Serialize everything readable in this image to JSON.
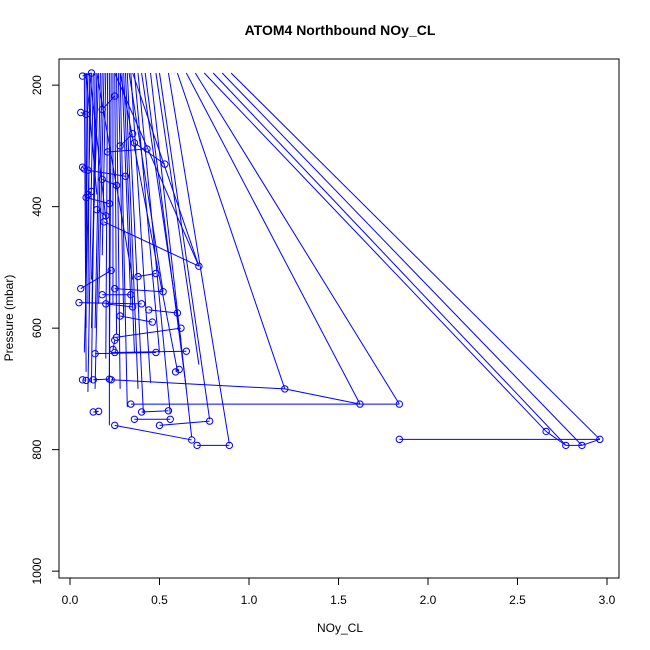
{
  "chart_data": {
    "type": "line",
    "title": "ATOM4 Northbound NOy_CL",
    "xlabel": "NOy_CL",
    "ylabel": "Pressure (mbar)",
    "xlim": [
      0,
      3.0
    ],
    "ylim": [
      1030,
      180
    ],
    "x_ticks": [
      0.0,
      0.5,
      1.0,
      1.5,
      2.0,
      2.5,
      3.0
    ],
    "x_tick_labels": [
      "0.0",
      "0.5",
      "1.0",
      "1.5",
      "2.0",
      "2.5",
      "3.0"
    ],
    "y_ticks": [
      200,
      400,
      600,
      800,
      1000
    ],
    "y_tick_labels": [
      "200",
      "400",
      "600",
      "800",
      "1000"
    ],
    "grid": false,
    "series_color": "#0000ff",
    "points": [
      [
        0.07,
        185
      ],
      [
        0.12,
        180
      ],
      [
        0.06,
        245
      ],
      [
        0.09,
        248
      ],
      [
        0.25,
        218
      ],
      [
        0.18,
        240
      ],
      [
        0.35,
        280
      ],
      [
        0.28,
        300
      ],
      [
        0.43,
        305
      ],
      [
        0.21,
        310
      ],
      [
        0.53,
        330
      ],
      [
        0.36,
        295
      ],
      [
        0.08,
        338
      ],
      [
        0.07,
        335
      ],
      [
        0.1,
        340
      ],
      [
        0.31,
        350
      ],
      [
        0.18,
        355
      ],
      [
        0.26,
        365
      ],
      [
        0.12,
        375
      ],
      [
        0.1,
        380
      ],
      [
        0.09,
        385
      ],
      [
        0.22,
        395
      ],
      [
        0.15,
        405
      ],
      [
        0.2,
        415
      ],
      [
        0.19,
        425
      ],
      [
        0.72,
        498
      ],
      [
        0.38,
        515
      ],
      [
        0.48,
        510
      ],
      [
        0.23,
        505
      ],
      [
        0.06,
        535
      ],
      [
        0.25,
        535
      ],
      [
        0.52,
        540
      ],
      [
        0.18,
        545
      ],
      [
        0.34,
        545
      ],
      [
        0.05,
        558
      ],
      [
        0.4,
        560
      ],
      [
        0.35,
        565
      ],
      [
        0.2,
        560
      ],
      [
        0.44,
        570
      ],
      [
        0.6,
        575
      ],
      [
        0.28,
        580
      ],
      [
        0.46,
        590
      ],
      [
        0.62,
        600
      ],
      [
        0.26,
        615
      ],
      [
        0.25,
        620
      ],
      [
        0.24,
        635
      ],
      [
        0.25,
        640
      ],
      [
        0.65,
        638
      ],
      [
        0.48,
        640
      ],
      [
        0.14,
        642
      ],
      [
        0.61,
        668
      ],
      [
        0.59,
        672
      ],
      [
        0.07,
        685
      ],
      [
        0.09,
        686
      ],
      [
        0.13,
        685
      ],
      [
        0.22,
        684
      ],
      [
        0.23,
        685
      ],
      [
        1.2,
        700
      ],
      [
        1.62,
        725
      ],
      [
        1.84,
        725
      ],
      [
        0.34,
        725
      ],
      [
        0.13,
        738
      ],
      [
        0.16,
        737
      ],
      [
        0.55,
        736
      ],
      [
        0.4,
        738
      ],
      [
        0.36,
        750
      ],
      [
        0.56,
        750
      ],
      [
        0.78,
        753
      ],
      [
        0.5,
        760
      ],
      [
        0.25,
        760
      ],
      [
        0.68,
        784
      ],
      [
        0.71,
        793
      ],
      [
        0.89,
        793
      ],
      [
        1.84,
        783
      ],
      [
        2.66,
        770
      ],
      [
        2.77,
        793
      ],
      [
        2.86,
        793
      ],
      [
        2.96,
        783
      ]
    ],
    "segments": [
      [
        0,
        1
      ],
      [
        2,
        3
      ],
      [
        4,
        5
      ],
      [
        6,
        7
      ],
      [
        8,
        9
      ],
      [
        10,
        11
      ],
      [
        12,
        13
      ],
      [
        14,
        15
      ],
      [
        16,
        17
      ],
      [
        18,
        19
      ],
      [
        20,
        21
      ],
      [
        22,
        23
      ],
      [
        24,
        25
      ],
      [
        26,
        27
      ],
      [
        28,
        29
      ],
      [
        30,
        31
      ],
      [
        32,
        33
      ],
      [
        34,
        35
      ],
      [
        36,
        37
      ],
      [
        38,
        39
      ],
      [
        40,
        41
      ],
      [
        42,
        43
      ],
      [
        44,
        45
      ],
      [
        46,
        47
      ],
      [
        48,
        49
      ],
      [
        50,
        51
      ],
      [
        52,
        53
      ],
      [
        54,
        55
      ],
      [
        56,
        57
      ],
      [
        57,
        58
      ],
      [
        59,
        60
      ],
      [
        61,
        62
      ],
      [
        63,
        64
      ],
      [
        65,
        66
      ],
      [
        67,
        68
      ],
      [
        69,
        70
      ],
      [
        71,
        72
      ],
      [
        73,
        77
      ],
      [
        74,
        75
      ],
      [
        75,
        76
      ],
      [
        76,
        77
      ]
    ],
    "top_lines": [
      [
        0.08,
        0.09,
        672
      ],
      [
        0.09,
        0.09,
        600
      ],
      [
        0.1,
        0.09,
        490
      ],
      [
        0.11,
        0.1,
        560
      ],
      [
        0.12,
        0.08,
        640
      ],
      [
        0.13,
        0.1,
        705
      ],
      [
        0.14,
        0.12,
        690
      ],
      [
        0.15,
        0.12,
        600
      ],
      [
        0.16,
        0.12,
        520
      ],
      [
        0.17,
        0.14,
        600
      ],
      [
        0.18,
        0.14,
        700
      ],
      [
        0.19,
        0.16,
        560
      ],
      [
        0.2,
        0.18,
        480
      ],
      [
        0.21,
        0.2,
        650
      ],
      [
        0.22,
        0.22,
        760
      ],
      [
        0.23,
        0.22,
        680
      ],
      [
        0.24,
        0.24,
        560
      ],
      [
        0.25,
        0.26,
        610
      ],
      [
        0.26,
        0.28,
        700
      ],
      [
        0.27,
        0.3,
        580
      ],
      [
        0.28,
        0.32,
        730
      ],
      [
        0.29,
        0.34,
        560
      ],
      [
        0.3,
        0.36,
        640
      ],
      [
        0.31,
        0.38,
        700
      ],
      [
        0.32,
        0.41,
        740
      ],
      [
        0.34,
        0.45,
        690
      ],
      [
        0.36,
        0.5,
        640
      ],
      [
        0.38,
        0.56,
        740
      ],
      [
        0.4,
        0.62,
        620
      ],
      [
        0.42,
        0.65,
        700
      ],
      [
        0.45,
        0.68,
        780
      ],
      [
        0.48,
        0.72,
        660
      ],
      [
        0.5,
        0.78,
        750
      ],
      [
        0.55,
        0.89,
        790
      ],
      [
        0.6,
        1.2,
        700
      ],
      [
        0.65,
        1.62,
        725
      ],
      [
        0.7,
        1.84,
        725
      ],
      [
        0.75,
        2.66,
        770
      ],
      [
        0.8,
        2.77,
        793
      ],
      [
        0.85,
        2.86,
        793
      ],
      [
        0.9,
        2.96,
        783
      ],
      [
        0.25,
        0.72,
        498
      ],
      [
        0.35,
        0.72,
        498
      ],
      [
        0.28,
        0.6,
        670
      ],
      [
        0.33,
        0.52,
        540
      ],
      [
        0.15,
        0.35,
        520
      ],
      [
        0.11,
        0.2,
        420
      ],
      [
        0.09,
        0.15,
        380
      ]
    ]
  }
}
